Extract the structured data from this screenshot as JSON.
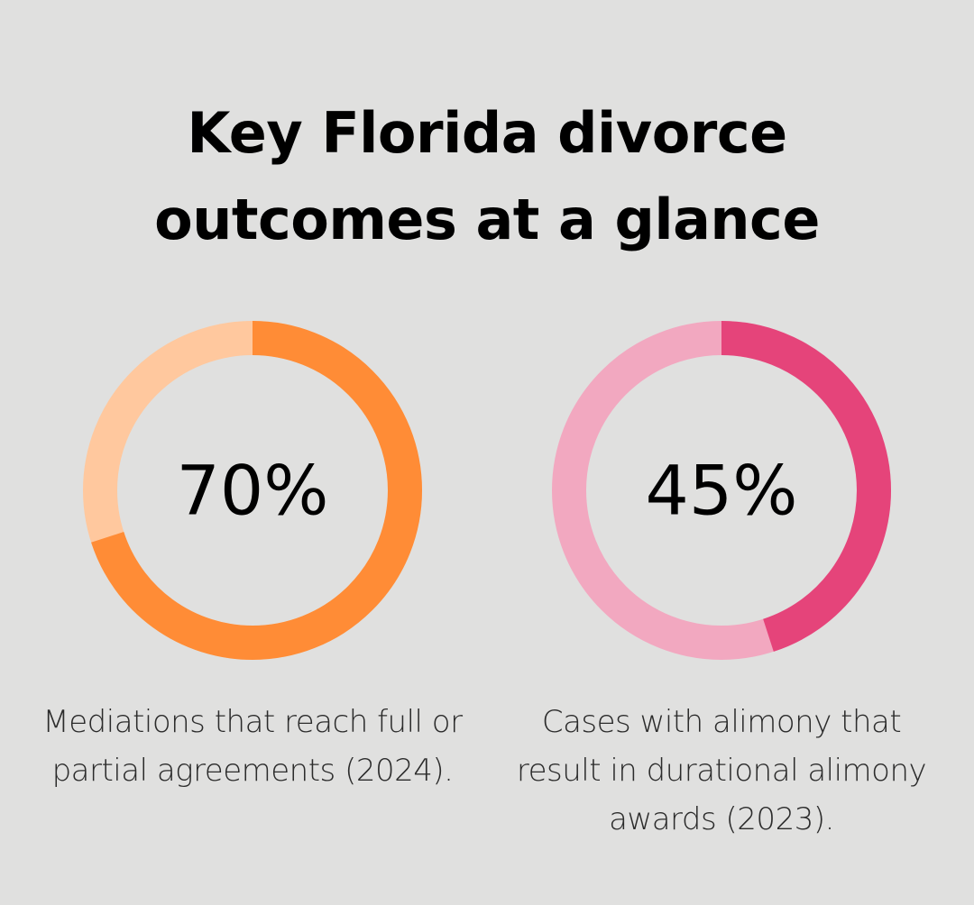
{
  "title_lines": [
    "Key Florida divorce",
    "outcomes at a glance"
  ],
  "chart_data": [
    {
      "type": "pie",
      "value": 70,
      "label": "70%",
      "caption": "Mediations that reach full or partial agreements (2024).",
      "colors": {
        "fill": "#ff8c36",
        "track": "#ffc89e"
      }
    },
    {
      "type": "pie",
      "value": 45,
      "label": "45%",
      "caption": "Cases with alimony that result in durational alimony awards (2023).",
      "colors": {
        "fill": "#e5447a",
        "track": "#f2a8c0"
      }
    }
  ]
}
